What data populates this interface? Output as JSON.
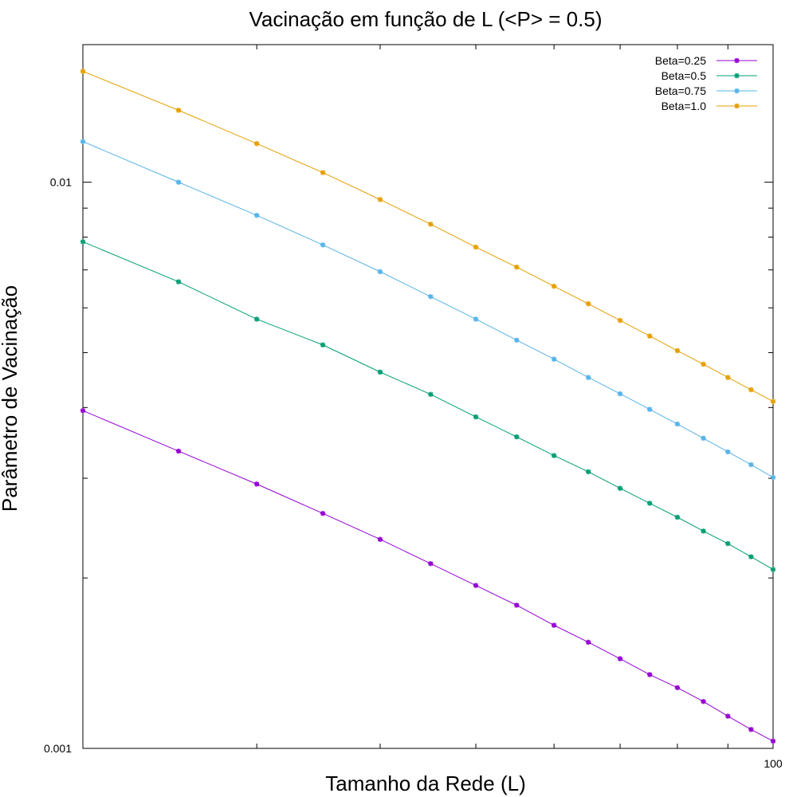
{
  "chart_data": {
    "type": "line",
    "title": "Vacinação em função de L (<P> = 0.5)",
    "xlabel": "Tamanho da Rede (L)",
    "ylabel": "Parâmetro de Vacinação",
    "xscale": "log",
    "yscale": "log",
    "xlim": [
      20,
      100
    ],
    "ylim": [
      0.001,
      0.0175
    ],
    "x_ticks": [
      {
        "value": 100,
        "label": "100"
      }
    ],
    "y_ticks": [
      {
        "value": 0.001,
        "label": "0.001"
      },
      {
        "value": 0.01,
        "label": "0.01"
      }
    ],
    "legend_position": "top-right",
    "x": [
      20,
      25,
      30,
      35,
      40,
      45,
      50,
      55,
      60,
      65,
      70,
      75,
      80,
      85,
      90,
      95,
      100
    ],
    "series": [
      {
        "name": "Beta=0.25",
        "color": "#9400d3",
        "values": [
          0.00395,
          0.00335,
          0.00293,
          0.0026,
          0.00234,
          0.00212,
          0.00194,
          0.00179,
          0.00165,
          0.00154,
          0.00144,
          0.00135,
          0.00128,
          0.00121,
          0.00114,
          0.00108,
          0.00103
        ]
      },
      {
        "name": "Beta=0.5",
        "color": "#009e73",
        "values": [
          0.00785,
          0.00667,
          0.00573,
          0.00516,
          0.00462,
          0.00422,
          0.00385,
          0.00355,
          0.00329,
          0.00308,
          0.00288,
          0.00271,
          0.00256,
          0.00242,
          0.0023,
          0.00218,
          0.00207
        ]
      },
      {
        "name": "Beta=0.75",
        "color": "#56b4e9",
        "values": [
          0.0118,
          0.01,
          0.00874,
          0.00775,
          0.00695,
          0.00628,
          0.00573,
          0.00526,
          0.00487,
          0.00452,
          0.00423,
          0.00397,
          0.00374,
          0.00353,
          0.00334,
          0.00317,
          0.00301
        ]
      },
      {
        "name": "Beta=1.0",
        "color": "#e69f00",
        "values": [
          0.0157,
          0.0134,
          0.0117,
          0.0104,
          0.00932,
          0.00843,
          0.00768,
          0.00708,
          0.00655,
          0.0061,
          0.0057,
          0.00535,
          0.00504,
          0.00477,
          0.00452,
          0.0043,
          0.0041
        ]
      }
    ]
  }
}
